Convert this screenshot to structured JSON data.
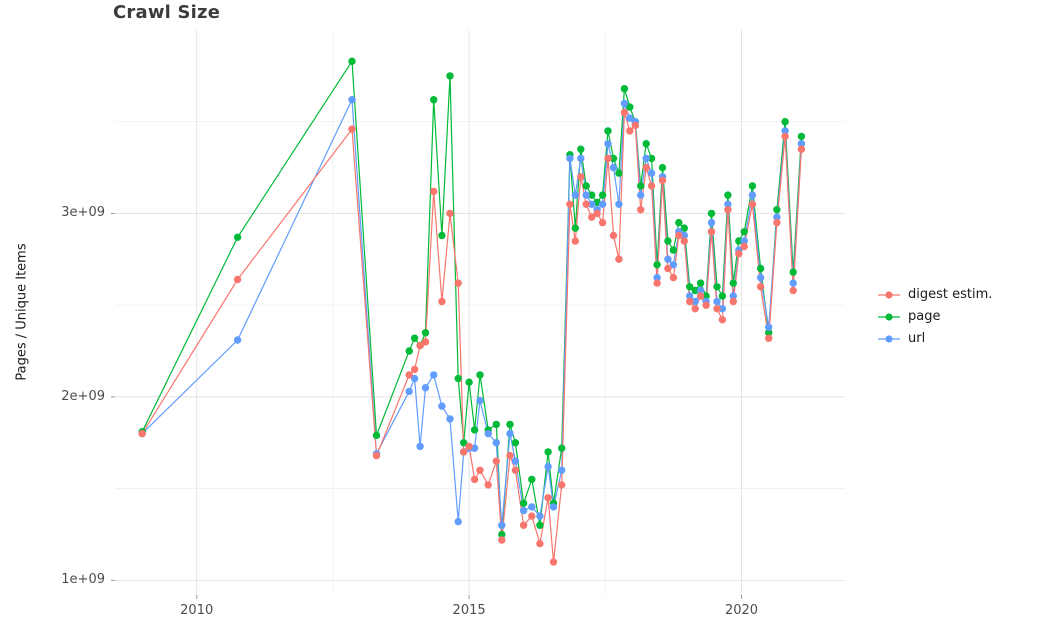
{
  "chart_data": {
    "type": "line",
    "title": "Crawl Size",
    "xlabel": "",
    "ylabel": "Pages / Unique Items",
    "grid": true,
    "legend_position": "right",
    "xlim": [
      2008.5,
      2021.9
    ],
    "ylim": [
      920000000.0,
      4000000000.0
    ],
    "x_ticks": [
      {
        "value": 2010,
        "label": "2010"
      },
      {
        "value": 2015,
        "label": "2015"
      },
      {
        "value": 2020,
        "label": "2020"
      }
    ],
    "x_minor": [
      2012.5,
      2017.5
    ],
    "y_ticks": [
      {
        "value": 1000000000.0,
        "label": "1e+09"
      },
      {
        "value": 2000000000.0,
        "label": "2e+09"
      },
      {
        "value": 3000000000.0,
        "label": "3e+09"
      }
    ],
    "y_minor": [
      1500000000.0,
      2500000000.0,
      3500000000.0
    ],
    "x": [
      2009.0,
      2010.75,
      2012.85,
      2013.3,
      2013.9,
      2014.0,
      2014.1,
      2014.2,
      2014.35,
      2014.5,
      2014.65,
      2014.8,
      2014.9,
      2015.0,
      2015.1,
      2015.2,
      2015.35,
      2015.5,
      2015.6,
      2015.75,
      2015.85,
      2016.0,
      2016.15,
      2016.3,
      2016.45,
      2016.55,
      2016.7,
      2016.85,
      2016.95,
      2017.05,
      2017.15,
      2017.25,
      2017.35,
      2017.45,
      2017.55,
      2017.65,
      2017.75,
      2017.85,
      2017.95,
      2018.05,
      2018.15,
      2018.25,
      2018.35,
      2018.45,
      2018.55,
      2018.65,
      2018.75,
      2018.85,
      2018.95,
      2019.05,
      2019.15,
      2019.25,
      2019.35,
      2019.45,
      2019.55,
      2019.65,
      2019.75,
      2019.85,
      2019.95,
      2020.05,
      2020.2,
      2020.35,
      2020.5,
      2020.65,
      2020.8,
      2020.95,
      2021.1
    ],
    "series": [
      {
        "name": "digest estim.",
        "color": "#F8766D",
        "values": [
          1800000000.0,
          2640000000.0,
          3460000000.0,
          1680000000.0,
          2120000000.0,
          2150000000.0,
          2280000000.0,
          2300000000.0,
          3120000000.0,
          2520000000.0,
          3000000000.0,
          2620000000.0,
          1700000000.0,
          1730000000.0,
          1550000000.0,
          1600000000.0,
          1520000000.0,
          1650000000.0,
          1220000000.0,
          1680000000.0,
          1600000000.0,
          1300000000.0,
          1350000000.0,
          1200000000.0,
          1450000000.0,
          1100000000.0,
          1520000000.0,
          3050000000.0,
          2850000000.0,
          3200000000.0,
          3050000000.0,
          2980000000.0,
          3000000000.0,
          2950000000.0,
          3300000000.0,
          2880000000.0,
          2750000000.0,
          3550000000.0,
          3450000000.0,
          3480000000.0,
          3020000000.0,
          3250000000.0,
          3150000000.0,
          2620000000.0,
          3180000000.0,
          2700000000.0,
          2650000000.0,
          2880000000.0,
          2850000000.0,
          2520000000.0,
          2480000000.0,
          2550000000.0,
          2500000000.0,
          2900000000.0,
          2480000000.0,
          2420000000.0,
          3020000000.0,
          2520000000.0,
          2780000000.0,
          2820000000.0,
          3050000000.0,
          2600000000.0,
          2320000000.0,
          2950000000.0,
          3420000000.0,
          2580000000.0,
          3350000000.0
        ]
      },
      {
        "name": "page",
        "color": "#00BA38",
        "values": [
          1810000000.0,
          2870000000.0,
          3830000000.0,
          1790000000.0,
          2250000000.0,
          2320000000.0,
          2280000000.0,
          2350000000.0,
          3620000000.0,
          2880000000.0,
          3750000000.0,
          2100000000.0,
          1750000000.0,
          2080000000.0,
          1820000000.0,
          2120000000.0,
          1820000000.0,
          1850000000.0,
          1250000000.0,
          1850000000.0,
          1750000000.0,
          1420000000.0,
          1550000000.0,
          1300000000.0,
          1700000000.0,
          1420000000.0,
          1720000000.0,
          3320000000.0,
          2920000000.0,
          3350000000.0,
          3150000000.0,
          3100000000.0,
          3060000000.0,
          3100000000.0,
          3450000000.0,
          3300000000.0,
          3220000000.0,
          3680000000.0,
          3580000000.0,
          3500000000.0,
          3150000000.0,
          3380000000.0,
          3300000000.0,
          2720000000.0,
          3250000000.0,
          2850000000.0,
          2800000000.0,
          2950000000.0,
          2920000000.0,
          2600000000.0,
          2580000000.0,
          2620000000.0,
          2550000000.0,
          3000000000.0,
          2600000000.0,
          2550000000.0,
          3100000000.0,
          2620000000.0,
          2850000000.0,
          2900000000.0,
          3150000000.0,
          2700000000.0,
          2350000000.0,
          3020000000.0,
          3500000000.0,
          2680000000.0,
          3420000000.0
        ]
      },
      {
        "name": "url",
        "color": "#619CFF",
        "values": [
          1800000000.0,
          2310000000.0,
          3620000000.0,
          1690000000.0,
          2030000000.0,
          2100000000.0,
          1730000000.0,
          2050000000.0,
          2120000000.0,
          1950000000.0,
          1880000000.0,
          1320000000.0,
          1700000000.0,
          1720000000.0,
          1720000000.0,
          1980000000.0,
          1800000000.0,
          1750000000.0,
          1300000000.0,
          1800000000.0,
          1650000000.0,
          1380000000.0,
          1400000000.0,
          1350000000.0,
          1620000000.0,
          1400000000.0,
          1600000000.0,
          3300000000.0,
          3100000000.0,
          3300000000.0,
          3100000000.0,
          3050000000.0,
          3020000000.0,
          3050000000.0,
          3380000000.0,
          3250000000.0,
          3050000000.0,
          3600000000.0,
          3520000000.0,
          3500000000.0,
          3100000000.0,
          3300000000.0,
          3220000000.0,
          2650000000.0,
          3200000000.0,
          2750000000.0,
          2720000000.0,
          2900000000.0,
          2880000000.0,
          2550000000.0,
          2520000000.0,
          2580000000.0,
          2520000000.0,
          2950000000.0,
          2520000000.0,
          2480000000.0,
          3050000000.0,
          2550000000.0,
          2800000000.0,
          2850000000.0,
          3100000000.0,
          2650000000.0,
          2380000000.0,
          2980000000.0,
          3450000000.0,
          2620000000.0,
          3380000000.0
        ]
      }
    ]
  }
}
